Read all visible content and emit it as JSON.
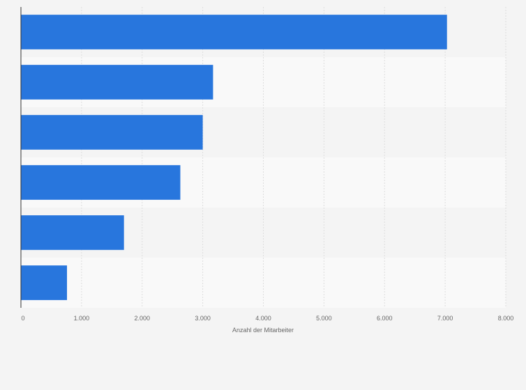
{
  "chart_data": {
    "type": "bar",
    "orientation": "horizontal",
    "categories": [
      "",
      "",
      "",
      "",
      "",
      ""
    ],
    "values": [
      7030,
      3170,
      3000,
      2630,
      1700,
      760
    ],
    "xlabel": "Anzahl der Mitarbeiter",
    "ylabel": "",
    "xlim": [
      0,
      8000
    ],
    "x_ticks": [
      0,
      1000,
      2000,
      3000,
      4000,
      5000,
      6000,
      7000,
      8000
    ],
    "x_tick_labels": [
      "0",
      "1.000",
      "2.000",
      "3.000",
      "4.000",
      "5.000",
      "6.000",
      "7.000",
      "8.000"
    ],
    "grid": true,
    "legend": "none",
    "colors": {
      "bar": "#2876dd",
      "band_dark": "#f4f4f4",
      "band_light": "#f9f9f9",
      "grid": "#dddddd",
      "axis": "#333333"
    }
  }
}
